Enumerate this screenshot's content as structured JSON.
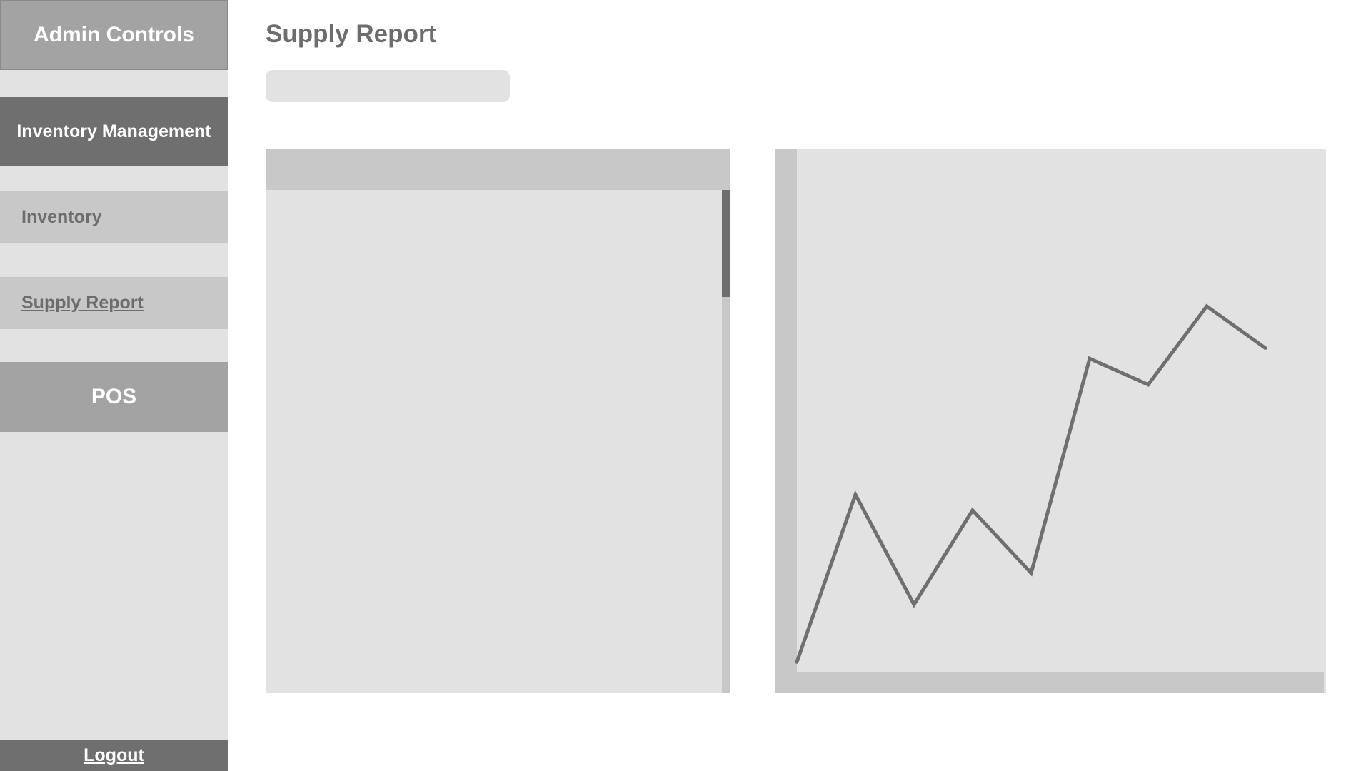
{
  "sidebar": {
    "admin_controls": "Admin Controls",
    "inventory_management": "Inventory Management",
    "items": [
      {
        "label": "Inventory"
      },
      {
        "label": "Supply Report"
      }
    ],
    "pos": "POS",
    "logout": "Logout"
  },
  "main": {
    "title": "Supply Report",
    "search": {
      "value": "",
      "placeholder": ""
    }
  },
  "colors": {
    "sidebar_bg": "#e2e2e2",
    "dark_block": "#6f6f6f",
    "mid_block": "#a3a3a3",
    "light_block": "#c8c8c8",
    "text_gray": "#6d6d6d",
    "line": "#6f6f6f"
  },
  "chart_data": {
    "type": "line",
    "title": "",
    "xlabel": "",
    "ylabel": "",
    "x": [
      0,
      1,
      2,
      3,
      4,
      5,
      6,
      7,
      8
    ],
    "values": [
      2,
      34,
      13,
      31,
      19,
      60,
      55,
      70,
      62
    ],
    "xlim": [
      0,
      9
    ],
    "ylim": [
      0,
      100
    ],
    "grid": false,
    "legend": "none"
  }
}
